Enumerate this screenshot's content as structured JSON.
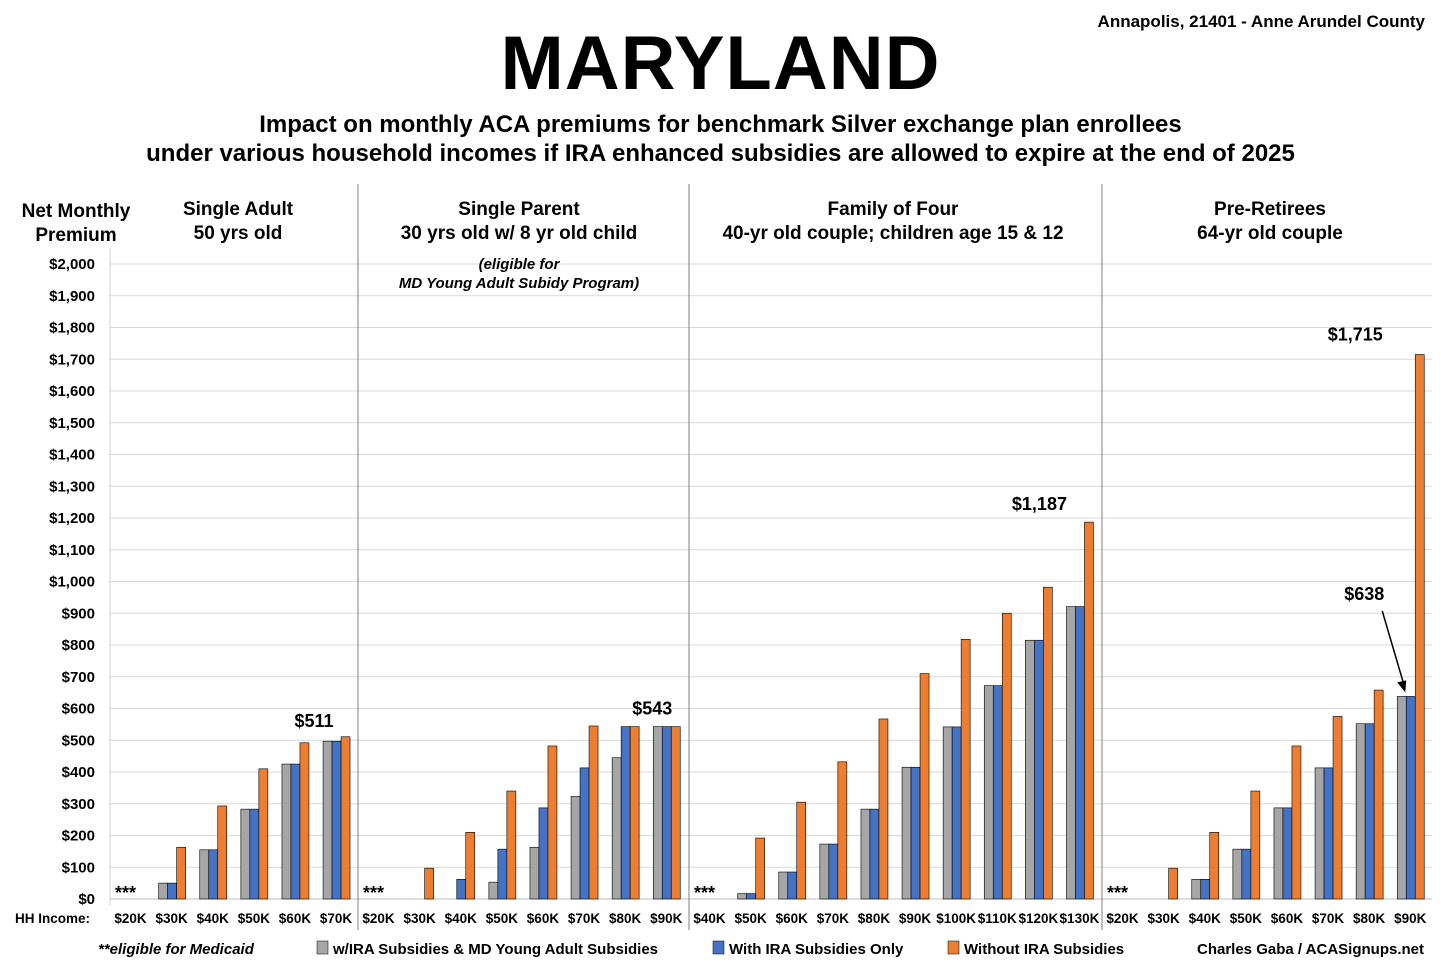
{
  "header": {
    "title": "MARYLAND",
    "location": "Annapolis, 21401 - Anne Arundel County",
    "subtitle_line1": "Impact on monthly ACA premiums for benchmark Silver exchange plan enrollees",
    "subtitle_line2": "under various household incomes if IRA enhanced subsidies are allowed to expire at the end of 2025"
  },
  "colors": {
    "gray": "#a6a6a6",
    "blue": "#4472c4",
    "orange": "#ed7d31",
    "grid": "#d9d9d9",
    "divider": "#7f7f7f"
  },
  "chart_data": {
    "type": "bar",
    "ylabel_line1": "Net Monthly",
    "ylabel_line2": "Premium",
    "ylim": [
      0,
      2000
    ],
    "ytick_step": 100,
    "ytick_labels": [
      "$0",
      "$100",
      "$200",
      "$300",
      "$400",
      "$500",
      "$600",
      "$700",
      "$800",
      "$900",
      "$1,000",
      "$1,100",
      "$1,200",
      "$1,300",
      "$1,400",
      "$1,500",
      "$1,600",
      "$1,700",
      "$1,800",
      "$1,900",
      "$2,000"
    ],
    "xaxis_prefix": "HH Income:",
    "grid": true,
    "legend_position": "bottom",
    "series_names": [
      "w/IRA Subsidies & MD Young Adult Subsidies",
      "With IRA Subsidies Only",
      "Without IRA Subsidies"
    ],
    "series_colors": [
      "#a6a6a6",
      "#4472c4",
      "#ed7d31"
    ],
    "groups": [
      {
        "title_line1": "Single Adult",
        "title_line2": "50 yrs old",
        "note_line1": "",
        "note_line2": "",
        "stars": "***",
        "categories": [
          "$20K",
          "$30K",
          "$40K",
          "$50K",
          "$60K",
          "$70K"
        ],
        "series": [
          {
            "name": "w/IRA Subsidies & MD Young Adult Subsidies",
            "values": [
              0,
              50,
              155,
              283,
              425,
              497
            ]
          },
          {
            "name": "With IRA Subsidies Only",
            "values": [
              0,
              50,
              155,
              283,
              425,
              497
            ]
          },
          {
            "name": "Without IRA Subsidies",
            "values": [
              0,
              163,
              293,
              410,
              492,
              511
            ]
          }
        ],
        "annotations": [
          {
            "text": "$511",
            "category_index": 5,
            "value": 511
          }
        ]
      },
      {
        "title_line1": "Single Parent",
        "title_line2": "30 yrs old w/ 8 yr old child",
        "note_line1": "(eligible for",
        "note_line2": "MD Young Adult Subidy Program)",
        "stars": "***",
        "categories": [
          "$20K",
          "$30K",
          "$40K",
          "$50K",
          "$60K",
          "$70K",
          "$80K",
          "$90K"
        ],
        "series": [
          {
            "name": "w/IRA Subsidies & MD Young Adult Subsidies",
            "values": [
              0,
              0,
              0,
              53,
              163,
              323,
              445,
              543
            ]
          },
          {
            "name": "With IRA Subsidies Only",
            "values": [
              0,
              0,
              62,
              157,
              287,
              413,
              543,
              543
            ]
          },
          {
            "name": "Without IRA Subsidies",
            "values": [
              0,
              97,
              210,
              340,
              482,
              545,
              543,
              543
            ]
          }
        ],
        "annotations": [
          {
            "text": "$543",
            "category_index": 7,
            "value": 543
          }
        ]
      },
      {
        "title_line1": "Family of Four",
        "title_line2": "40-yr old couple; children age 15 & 12",
        "note_line1": "",
        "note_line2": "",
        "stars": "***",
        "categories": [
          "$40K",
          "$50K",
          "$60K",
          "$70K",
          "$80K",
          "$90K",
          "$100K",
          "$110K",
          "$120K",
          "$130K"
        ],
        "series": [
          {
            "name": "w/IRA Subsidies & MD Young Adult Subsidies",
            "values": [
              0,
              17,
              85,
              173,
              283,
              415,
              542,
              672,
              815,
              921
            ]
          },
          {
            "name": "With IRA Subsidies Only",
            "values": [
              0,
              17,
              85,
              173,
              283,
              415,
              542,
              672,
              815,
              921
            ]
          },
          {
            "name": "Without IRA Subsidies",
            "values": [
              0,
              192,
              305,
              432,
              567,
              710,
              818,
              900,
              982,
              1187
            ]
          }
        ],
        "annotations": [
          {
            "text": "$1,187",
            "category_index": 9,
            "value": 1187
          }
        ]
      },
      {
        "title_line1": "Pre-Retirees",
        "title_line2": "64-yr old couple",
        "note_line1": "",
        "note_line2": "",
        "stars": "***",
        "categories": [
          "$20K",
          "$30K",
          "$40K",
          "$50K",
          "$60K",
          "$70K",
          "$80K",
          "$90K"
        ],
        "series": [
          {
            "name": "w/IRA Subsidies & MD Young Adult Subsidies",
            "values": [
              0,
              0,
              62,
              157,
              287,
              413,
              552,
              638
            ]
          },
          {
            "name": "With IRA Subsidies Only",
            "values": [
              0,
              0,
              62,
              157,
              287,
              413,
              552,
              638
            ]
          },
          {
            "name": "Without IRA Subsidies",
            "values": [
              0,
              97,
              210,
              340,
              482,
              575,
              658,
              1715
            ]
          }
        ],
        "annotations": [
          {
            "text": "$1,715",
            "category_index": 7,
            "value": 1715
          },
          {
            "text": "$638",
            "category_index": 7,
            "value": 638
          }
        ]
      }
    ]
  },
  "footer": {
    "medicaid_note": "**eligible for Medicaid",
    "legend_gray": "w/IRA Subsidies & MD Young Adult Subsidies",
    "legend_blue": "With IRA Subsidies Only",
    "legend_orange": "Without IRA Subsidies",
    "credit": "Charles Gaba / ACASignups.net"
  }
}
